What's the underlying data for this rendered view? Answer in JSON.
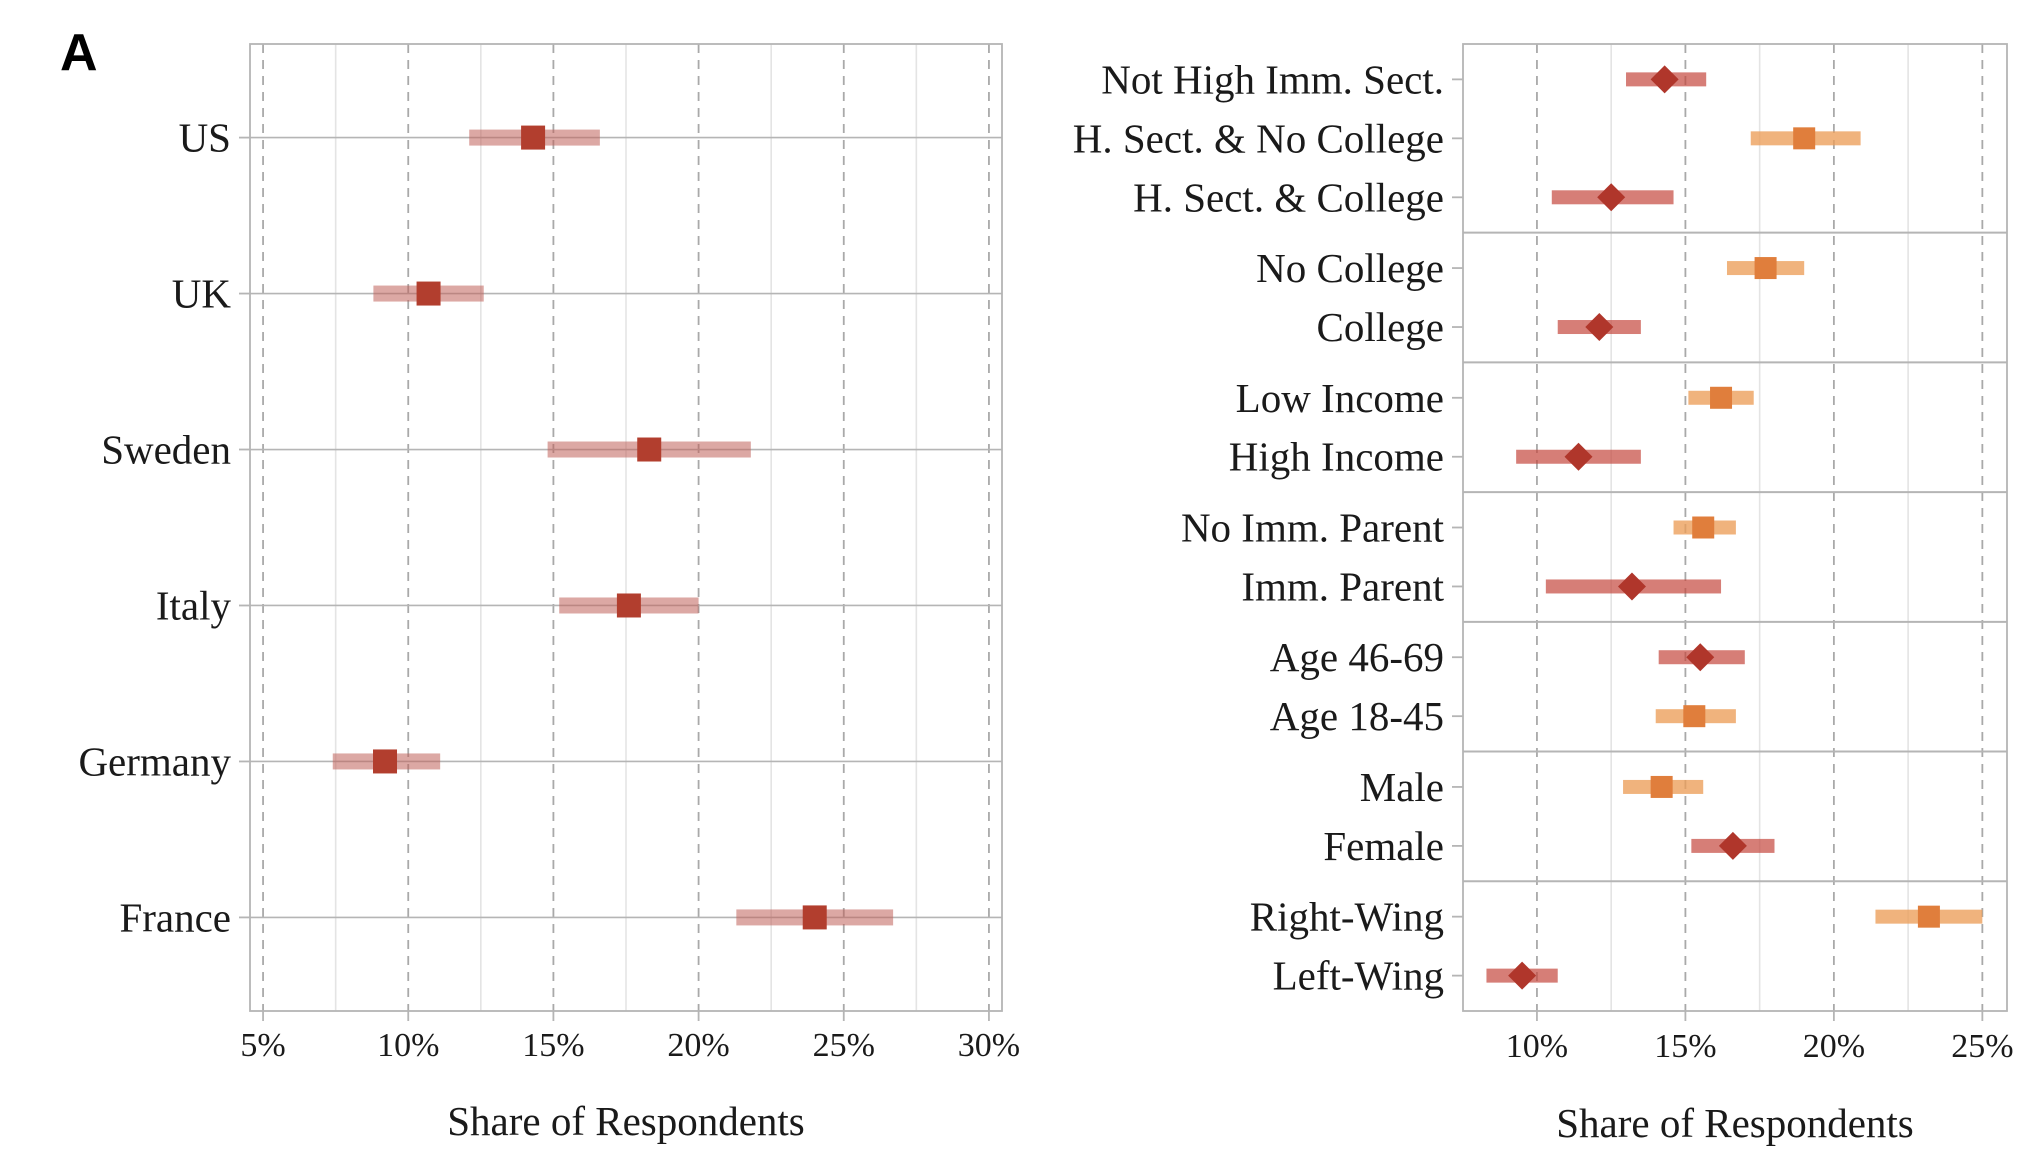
{
  "panel_label": "A",
  "colors": {
    "country_marker": "#B23E2E",
    "country_ci": "#C0615A",
    "diamond_marker": "#B0362B",
    "diamond_ci": "#C4473D",
    "square_marker": "#E07E3C",
    "square_ci": "#EC9E58",
    "grid_major": "#A9A9A9",
    "grid_minor": "#E4E4E4",
    "axis_line": "#B5B5B5"
  },
  "chart_data": [
    {
      "type": "scatter",
      "categories": [
        "US",
        "UK",
        "Sweden",
        "Italy",
        "Germany",
        "France"
      ],
      "series": [
        {
          "marker": "square",
          "values": [
            14.3,
            10.7,
            18.3,
            17.6,
            9.2,
            24.0
          ],
          "ci_low": [
            12.1,
            8.8,
            14.8,
            15.2,
            7.4,
            21.3
          ],
          "ci_high": [
            16.6,
            12.6,
            21.8,
            20.0,
            11.1,
            26.7
          ]
        }
      ],
      "xlabel": "Share of Respondents",
      "xlim": [
        4.55,
        30.45
      ],
      "xtick_values": [
        5,
        10,
        15,
        20,
        25,
        30
      ],
      "xtick_labels": [
        "5%",
        "10%",
        "15%",
        "20%",
        "25%",
        "30%"
      ],
      "grid": true,
      "legend": "none"
    },
    {
      "type": "scatter",
      "groups": [
        {
          "rows": [
            {
              "label": "Not High Imm. Sect.",
              "value": 14.3,
              "ci": [
                13.0,
                15.7
              ],
              "marker": "diamond"
            },
            {
              "label": "H. Sect. & No College",
              "value": 19.0,
              "ci": [
                17.2,
                20.9
              ],
              "marker": "square"
            },
            {
              "label": "H. Sect. & College",
              "value": 12.5,
              "ci": [
                10.5,
                14.6
              ],
              "marker": "diamond"
            }
          ]
        },
        {
          "rows": [
            {
              "label": "No College",
              "value": 17.7,
              "ci": [
                16.4,
                19.0
              ],
              "marker": "square"
            },
            {
              "label": "College",
              "value": 12.1,
              "ci": [
                10.7,
                13.5
              ],
              "marker": "diamond"
            }
          ]
        },
        {
          "rows": [
            {
              "label": "Low Income",
              "value": 16.2,
              "ci": [
                15.1,
                17.3
              ],
              "marker": "square"
            },
            {
              "label": "High Income",
              "value": 11.4,
              "ci": [
                9.3,
                13.5
              ],
              "marker": "diamond"
            }
          ]
        },
        {
          "rows": [
            {
              "label": "No Imm. Parent",
              "value": 15.6,
              "ci": [
                14.6,
                16.7
              ],
              "marker": "square"
            },
            {
              "label": "Imm. Parent",
              "value": 13.2,
              "ci": [
                10.3,
                16.2
              ],
              "marker": "diamond"
            }
          ]
        },
        {
          "rows": [
            {
              "label": "Age 46-69",
              "value": 15.5,
              "ci": [
                14.1,
                17.0
              ],
              "marker": "diamond"
            },
            {
              "label": "Age 18-45",
              "value": 15.3,
              "ci": [
                14.0,
                16.7
              ],
              "marker": "square"
            }
          ]
        },
        {
          "rows": [
            {
              "label": "Male",
              "value": 14.2,
              "ci": [
                12.9,
                15.6
              ],
              "marker": "square"
            },
            {
              "label": "Female",
              "value": 16.6,
              "ci": [
                15.2,
                18.0
              ],
              "marker": "diamond"
            }
          ]
        },
        {
          "rows": [
            {
              "label": "Right-Wing",
              "value": 23.2,
              "ci": [
                21.4,
                25.0
              ],
              "marker": "square"
            },
            {
              "label": "Left-Wing",
              "value": 9.5,
              "ci": [
                8.3,
                10.7
              ],
              "marker": "diamond"
            }
          ]
        }
      ],
      "xlabel": "Share of Respondents",
      "xlim": [
        7.51,
        25.83
      ],
      "xtick_values": [
        10,
        15,
        20,
        25
      ],
      "xtick_labels": [
        "10%",
        "15%",
        "20%",
        "25%"
      ],
      "grid": true,
      "legend": "none"
    }
  ]
}
